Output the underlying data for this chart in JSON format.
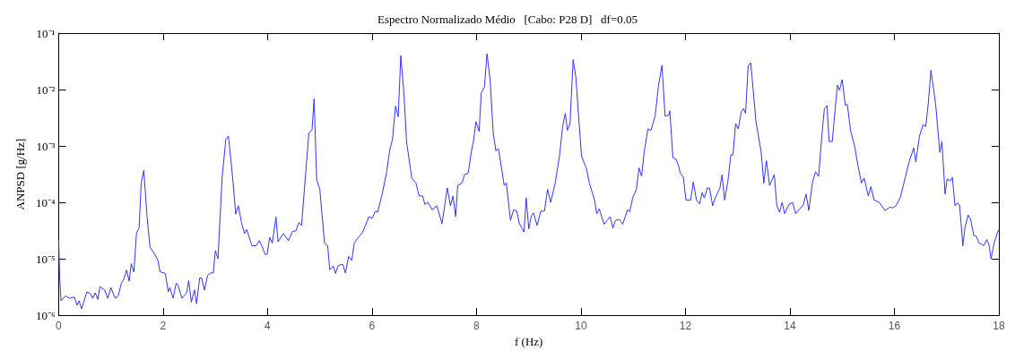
{
  "chart_data": {
    "type": "line",
    "title": "Espectro Normalizado Médio   [Cabo: P28 D]   df=0.05",
    "xlabel": "f (Hz)",
    "ylabel": "ANPSD [g/Hz]",
    "log": "y",
    "grid": false,
    "marker": "none",
    "line_style": "solid",
    "xlim": [
      0,
      18
    ],
    "xticks": [
      0,
      2,
      4,
      6,
      8,
      10,
      12,
      14,
      16,
      18
    ],
    "ylim": [
      1e-06,
      0.1
    ],
    "yticks": [
      {
        "value": 1e-06,
        "label": "10⁻⁶"
      },
      {
        "value": 1e-05,
        "label": "10⁻⁵"
      },
      {
        "value": 0.0001,
        "label": "10⁻⁴"
      },
      {
        "value": 0.001,
        "label": "10⁻³"
      },
      {
        "value": 0.01,
        "label": "10⁻²"
      },
      {
        "value": 0.1,
        "label": "10⁻¹"
      }
    ],
    "series": [
      {
        "color": "#3333ff",
        "x": [
          0,
          0.02,
          0.045,
          0.13,
          0.21,
          0.3,
          0.35,
          0.39,
          0.44,
          0.54,
          0.61,
          0.65,
          0.7,
          0.75,
          0.79,
          0.88,
          0.94,
          1.0,
          1.08,
          1.14,
          1.2,
          1.25,
          1.3,
          1.35,
          1.39,
          1.44,
          1.49,
          1.54,
          1.58,
          1.63,
          1.69,
          1.75,
          1.84,
          1.9,
          1.94,
          2.04,
          2.1,
          2.13,
          2.19,
          2.25,
          2.29,
          2.36,
          2.45,
          2.49,
          2.54,
          2.6,
          2.64,
          2.7,
          2.74,
          2.79,
          2.85,
          2.9,
          2.96,
          3.0,
          3.05,
          3.13,
          3.2,
          3.25,
          3.33,
          3.39,
          3.44,
          3.5,
          3.56,
          3.6,
          3.7,
          3.78,
          3.84,
          3.89,
          3.95,
          3.99,
          4.04,
          4.09,
          4.16,
          4.2,
          4.3,
          4.4,
          4.48,
          4.54,
          4.6,
          4.65,
          4.7,
          4.79,
          4.85,
          4.89,
          4.94,
          5.0,
          5.09,
          5.15,
          5.19,
          5.26,
          5.3,
          5.35,
          5.44,
          5.49,
          5.55,
          5.61,
          5.66,
          5.72,
          5.8,
          5.83,
          5.94,
          6.0,
          6.06,
          6.11,
          6.2,
          6.28,
          6.34,
          6.39,
          6.45,
          6.5,
          6.55,
          6.61,
          6.66,
          6.76,
          6.84,
          6.9,
          6.97,
          7.01,
          7.07,
          7.15,
          7.24,
          7.34,
          7.44,
          7.5,
          7.55,
          7.6,
          7.64,
          7.72,
          7.77,
          7.84,
          7.9,
          7.94,
          7.99,
          8.05,
          8.09,
          8.15,
          8.2,
          8.26,
          8.32,
          8.37,
          8.42,
          8.47,
          8.53,
          8.57,
          8.65,
          8.71,
          8.77,
          8.82,
          8.91,
          8.95,
          9.0,
          9.05,
          9.09,
          9.16,
          9.23,
          9.3,
          9.36,
          9.42,
          9.51,
          9.59,
          9.65,
          9.7,
          9.74,
          9.79,
          9.85,
          9.9,
          10.01,
          10.1,
          10.16,
          10.26,
          10.3,
          10.35,
          10.44,
          10.51,
          10.56,
          10.61,
          10.66,
          10.73,
          10.8,
          10.89,
          10.93,
          10.99,
          11.06,
          11.11,
          11.16,
          11.21,
          11.28,
          11.34,
          11.42,
          11.48,
          11.55,
          11.61,
          11.68,
          11.7,
          11.76,
          11.82,
          11.87,
          11.9,
          11.96,
          12.01,
          12.1,
          12.15,
          12.21,
          12.27,
          12.32,
          12.36,
          12.42,
          12.46,
          12.52,
          12.57,
          12.66,
          12.7,
          12.75,
          12.81,
          12.87,
          12.91,
          12.96,
          13.01,
          13.07,
          13.11,
          13.15,
          13.2,
          13.25,
          13.35,
          13.45,
          13.5,
          13.55,
          13.61,
          13.7,
          13.75,
          13.8,
          13.85,
          13.9,
          13.98,
          14.05,
          14.11,
          14.18,
          14.25,
          14.31,
          14.36,
          14.43,
          14.49,
          14.55,
          14.61,
          14.66,
          14.71,
          14.75,
          14.81,
          14.85,
          14.91,
          14.95,
          15.0,
          15.06,
          15.1,
          15.16,
          15.24,
          15.3,
          15.37,
          15.42,
          15.5,
          15.55,
          15.61,
          15.71,
          15.82,
          15.92,
          15.97,
          16.03,
          16.11,
          16.21,
          16.28,
          16.37,
          16.41,
          16.48,
          16.55,
          16.6,
          16.65,
          16.7,
          16.79,
          16.87,
          16.91,
          16.97,
          17.01,
          17.07,
          17.11,
          17.16,
          17.21,
          17.25,
          17.31,
          17.35,
          17.41,
          17.46,
          17.52,
          17.57,
          17.62,
          17.68,
          17.71,
          17.77,
          17.81,
          17.85,
          17.91,
          17.97,
          18.0
        ],
        "values": [
          2.2e-05,
          4.5e-06,
          1.8e-06,
          2.2e-06,
          2e-06,
          2.1e-06,
          1.5e-06,
          1.8e-06,
          1.3e-06,
          2.6e-06,
          2.4e-06,
          2e-06,
          2.5e-06,
          1.9e-06,
          3.2e-06,
          2.8e-06,
          2e-06,
          3.1e-06,
          2e-06,
          2.2e-06,
          3.7e-06,
          4.4e-06,
          6.3e-06,
          4e-06,
          8.2e-06,
          5.8e-06,
          2.9e-05,
          3.5e-05,
          0.00022,
          0.00037,
          5.9e-05,
          1.6e-05,
          1.2e-05,
          9.5e-06,
          5.9e-06,
          5.5e-06,
          2.6e-06,
          3.1e-06,
          2e-06,
          3.7e-06,
          3.3e-06,
          2e-06,
          2.5e-06,
          4.1e-06,
          1.7e-06,
          2.8e-06,
          1.6e-06,
          4.6e-06,
          4.5e-06,
          2.8e-06,
          5e-06,
          5.6e-06,
          5.6e-06,
          1.4e-05,
          1e-05,
          0.00028,
          0.0013,
          0.0015,
          0.00028,
          6.2e-05,
          8.7e-05,
          4.4e-05,
          2.8e-05,
          3.3e-05,
          1.7e-05,
          1.7e-05,
          2.1e-05,
          1.7e-05,
          1.2e-05,
          1.2e-05,
          2.4e-05,
          1.9e-05,
          5.5e-05,
          2e-05,
          2.8e-05,
          2.1e-05,
          3.1e-05,
          3.1e-05,
          4.4e-05,
          3.9e-05,
          0.00015,
          0.0017,
          0.0019,
          0.0069,
          0.00025,
          0.00017,
          1.9e-05,
          1.7e-05,
          6.4e-06,
          7.4e-06,
          5.5e-06,
          7.6e-06,
          8e-06,
          5.6e-06,
          1.1e-05,
          9.4e-06,
          1.9e-05,
          2.3e-05,
          2.8e-05,
          3.1e-05,
          5.6e-05,
          5.2e-05,
          6.9e-05,
          6.8e-05,
          0.00015,
          0.00035,
          0.00087,
          0.0013,
          0.0051,
          0.0033,
          0.04,
          0.0087,
          0.0012,
          0.00027,
          0.00022,
          0.00013,
          0.00013,
          9.2e-05,
          0.0001,
          7.4e-05,
          8.7e-05,
          4.2e-05,
          0.00018,
          8.7e-05,
          0.00013,
          5.6e-05,
          0.0002,
          0.00022,
          0.00031,
          0.00033,
          0.00078,
          0.0012,
          0.0027,
          0.0018,
          0.0087,
          0.011,
          0.043,
          0.015,
          0.0017,
          0.00082,
          0.00089,
          0.00046,
          0.0002,
          0.00022,
          4.8e-05,
          7.4e-05,
          7e-05,
          4.2e-05,
          3e-05,
          0.00012,
          3.4e-05,
          5.8e-05,
          6.5e-05,
          3.9e-05,
          7e-05,
          7e-05,
          0.00017,
          0.0001,
          0.00023,
          0.00069,
          0.0023,
          0.0038,
          0.0019,
          0.0025,
          0.034,
          0.017,
          0.00066,
          0.00041,
          0.00022,
          0.00011,
          6.3e-05,
          7.7e-05,
          4.1e-05,
          4.9e-05,
          5.6e-05,
          3.5e-05,
          4.8e-05,
          5e-05,
          4.1e-05,
          7.4e-05,
          6.8e-05,
          0.00012,
          0.00017,
          0.00041,
          0.00029,
          0.00078,
          0.002,
          0.0019,
          0.0034,
          0.011,
          0.027,
          0.0034,
          0.0035,
          0.0042,
          0.00062,
          0.00058,
          0.00044,
          0.00033,
          0.00028,
          0.00011,
          0.00011,
          0.00023,
          0.00011,
          9.4e-05,
          0.00015,
          0.00012,
          0.00018,
          0.00018,
          8.7e-05,
          0.00012,
          0.00018,
          0.00031,
          0.00011,
          0.00023,
          0.0007,
          0.00069,
          0.0025,
          0.002,
          0.0041,
          0.0046,
          0.0038,
          0.026,
          0.03,
          0.0027,
          0.00077,
          0.00022,
          0.00055,
          0.0002,
          0.00031,
          8.7e-05,
          6.7e-05,
          0.0001,
          6.3e-05,
          9.2e-05,
          0.0001,
          6.3e-05,
          7.6e-05,
          8.7e-05,
          0.00014,
          7.2e-05,
          0.00022,
          0.00035,
          0.00029,
          0.0015,
          0.0046,
          0.0052,
          0.0012,
          0.0012,
          0.0031,
          0.012,
          0.0097,
          0.015,
          0.0053,
          0.0054,
          0.0019,
          0.00098,
          0.00046,
          0.00022,
          0.00027,
          0.00013,
          0.00019,
          0.00011,
          0.0001,
          7.2e-05,
          8.3e-05,
          8e-05,
          8.7e-05,
          0.00012,
          0.00028,
          0.00052,
          0.00092,
          0.00052,
          0.0015,
          0.0024,
          0.0022,
          0.0058,
          0.022,
          0.0055,
          0.00077,
          0.0012,
          0.00014,
          0.00026,
          0.00024,
          0.00028,
          8.7e-05,
          9.8e-05,
          8.7e-05,
          1.7e-05,
          3.5e-05,
          6e-05,
          5e-05,
          2.6e-05,
          2.5e-05,
          1.9e-05,
          1.8e-05,
          1.7e-05,
          2.2e-05,
          1.8e-05,
          1e-05,
          1.9e-05,
          2.9e-05,
          3.3e-05
        ]
      }
    ]
  }
}
